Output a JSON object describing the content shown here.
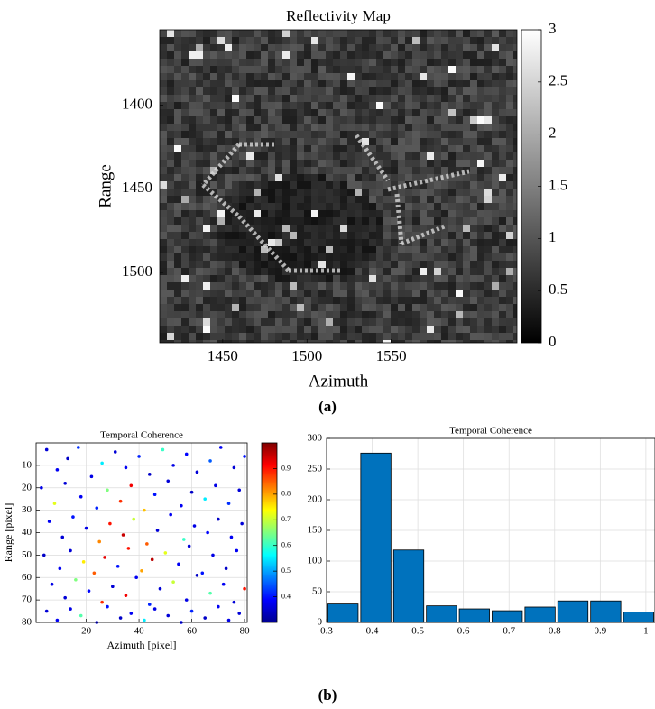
{
  "panel_labels": [
    "(a)",
    "(b)"
  ],
  "chart_data": [
    {
      "type": "image",
      "title": "Reflectivity Map",
      "xlabel": "Azimuth",
      "ylabel": "Range",
      "xlim": [
        1412.6,
        1624.6
      ],
      "xticks": [
        1450,
        1500,
        1550
      ],
      "ylim": [
        1355,
        1542
      ],
      "yticks": [
        1400,
        1450,
        1500
      ],
      "y_reversed": true,
      "colormap": "gray",
      "clim": [
        0,
        3
      ],
      "cticks": [
        0,
        0.5,
        1,
        1.5,
        2,
        2.5,
        3
      ]
    },
    {
      "type": "scatter",
      "title": "Temporal Coherence",
      "xlabel": "Azimuth [pixel]",
      "ylabel": "Range [pixel]",
      "xlim": [
        1,
        81
      ],
      "xticks": [
        20,
        40,
        60,
        80
      ],
      "ylim": [
        0,
        80
      ],
      "yticks": [
        10,
        20,
        30,
        40,
        50,
        60,
        70,
        80
      ],
      "y_reversed": true,
      "grid": true,
      "colormap": "jet",
      "clim": [
        0.3,
        1.0
      ],
      "cticks": [
        0.4,
        0.5,
        0.6,
        0.7,
        0.8,
        0.9
      ],
      "x": [
        5,
        9,
        13,
        17,
        22,
        26,
        31,
        35,
        40,
        44,
        49,
        53,
        58,
        62,
        67,
        71,
        76,
        80,
        3,
        8,
        12,
        18,
        24,
        28,
        33,
        37,
        42,
        46,
        51,
        56,
        60,
        65,
        69,
        74,
        78,
        6,
        11,
        15,
        20,
        25,
        29,
        34,
        38,
        43,
        47,
        52,
        57,
        61,
        66,
        70,
        75,
        79,
        4,
        10,
        14,
        19,
        23,
        27,
        32,
        36,
        41,
        45,
        50,
        55,
        59,
        64,
        68,
        73,
        77,
        7,
        12,
        16,
        21,
        26,
        30,
        35,
        39,
        44,
        48,
        53,
        58,
        62,
        67,
        72,
        76,
        80,
        5,
        9,
        14,
        18,
        24,
        28,
        33,
        37,
        42,
        46,
        51,
        56,
        60,
        65,
        70,
        74,
        78
      ],
      "y": [
        3,
        12,
        7,
        2,
        15,
        9,
        4,
        11,
        6,
        14,
        3,
        10,
        5,
        13,
        8,
        2,
        11,
        6,
        20,
        27,
        18,
        24,
        29,
        21,
        26,
        19,
        30,
        23,
        17,
        28,
        22,
        25,
        19,
        27,
        21,
        35,
        42,
        33,
        38,
        44,
        36,
        41,
        34,
        45,
        39,
        32,
        43,
        37,
        40,
        34,
        42,
        36,
        50,
        56,
        48,
        53,
        58,
        51,
        55,
        47,
        57,
        52,
        49,
        54,
        46,
        58,
        50,
        56,
        48,
        63,
        69,
        61,
        66,
        71,
        64,
        68,
        60,
        72,
        65,
        62,
        70,
        59,
        67,
        63,
        71,
        65,
        75,
        79,
        74,
        77,
        80,
        73,
        78,
        76,
        79,
        74,
        77,
        80,
        75,
        78,
        73,
        79,
        76
      ],
      "values": [
        0.36,
        0.38,
        0.35,
        0.42,
        0.37,
        0.55,
        0.36,
        0.38,
        0.41,
        0.35,
        0.6,
        0.37,
        0.39,
        0.36,
        0.45,
        0.38,
        0.36,
        0.4,
        0.37,
        0.72,
        0.36,
        0.38,
        0.41,
        0.65,
        0.88,
        0.92,
        0.78,
        0.4,
        0.36,
        0.38,
        0.35,
        0.55,
        0.37,
        0.42,
        0.36,
        0.38,
        0.36,
        0.4,
        0.37,
        0.82,
        0.9,
        0.95,
        0.7,
        0.85,
        0.36,
        0.38,
        0.6,
        0.37,
        0.39,
        0.35,
        0.38,
        0.36,
        0.35,
        0.38,
        0.36,
        0.75,
        0.85,
        0.93,
        0.4,
        0.9,
        0.8,
        0.96,
        0.72,
        0.38,
        0.36,
        0.4,
        0.37,
        0.35,
        0.38,
        0.37,
        0.36,
        0.65,
        0.39,
        0.88,
        0.36,
        0.92,
        0.38,
        0.41,
        0.36,
        0.7,
        0.37,
        0.35,
        0.62,
        0.38,
        0.36,
        0.9,
        0.36,
        0.38,
        0.37,
        0.62,
        0.36,
        0.4,
        0.35,
        0.38,
        0.55,
        0.37,
        0.36,
        0.39,
        0.41,
        0.35,
        0.38,
        0.37,
        0.36
      ]
    },
    {
      "type": "histogram",
      "title": "Temporal Coherence",
      "color": "#0072bd",
      "bins": [
        0.3,
        0.372,
        0.444,
        0.516,
        0.588,
        0.66,
        0.732,
        0.804,
        0.876,
        0.948,
        1.02
      ],
      "values": [
        30,
        276,
        118,
        27,
        22,
        19,
        25,
        35,
        35,
        17
      ],
      "xlim": [
        0.3,
        1.02
      ],
      "xticks": [
        0.3,
        0.4,
        0.5,
        0.6,
        0.7,
        0.8,
        0.9,
        1
      ],
      "ylim": [
        0,
        300
      ],
      "yticks": [
        0,
        50,
        100,
        150,
        200,
        250,
        300
      ],
      "grid": true
    }
  ]
}
